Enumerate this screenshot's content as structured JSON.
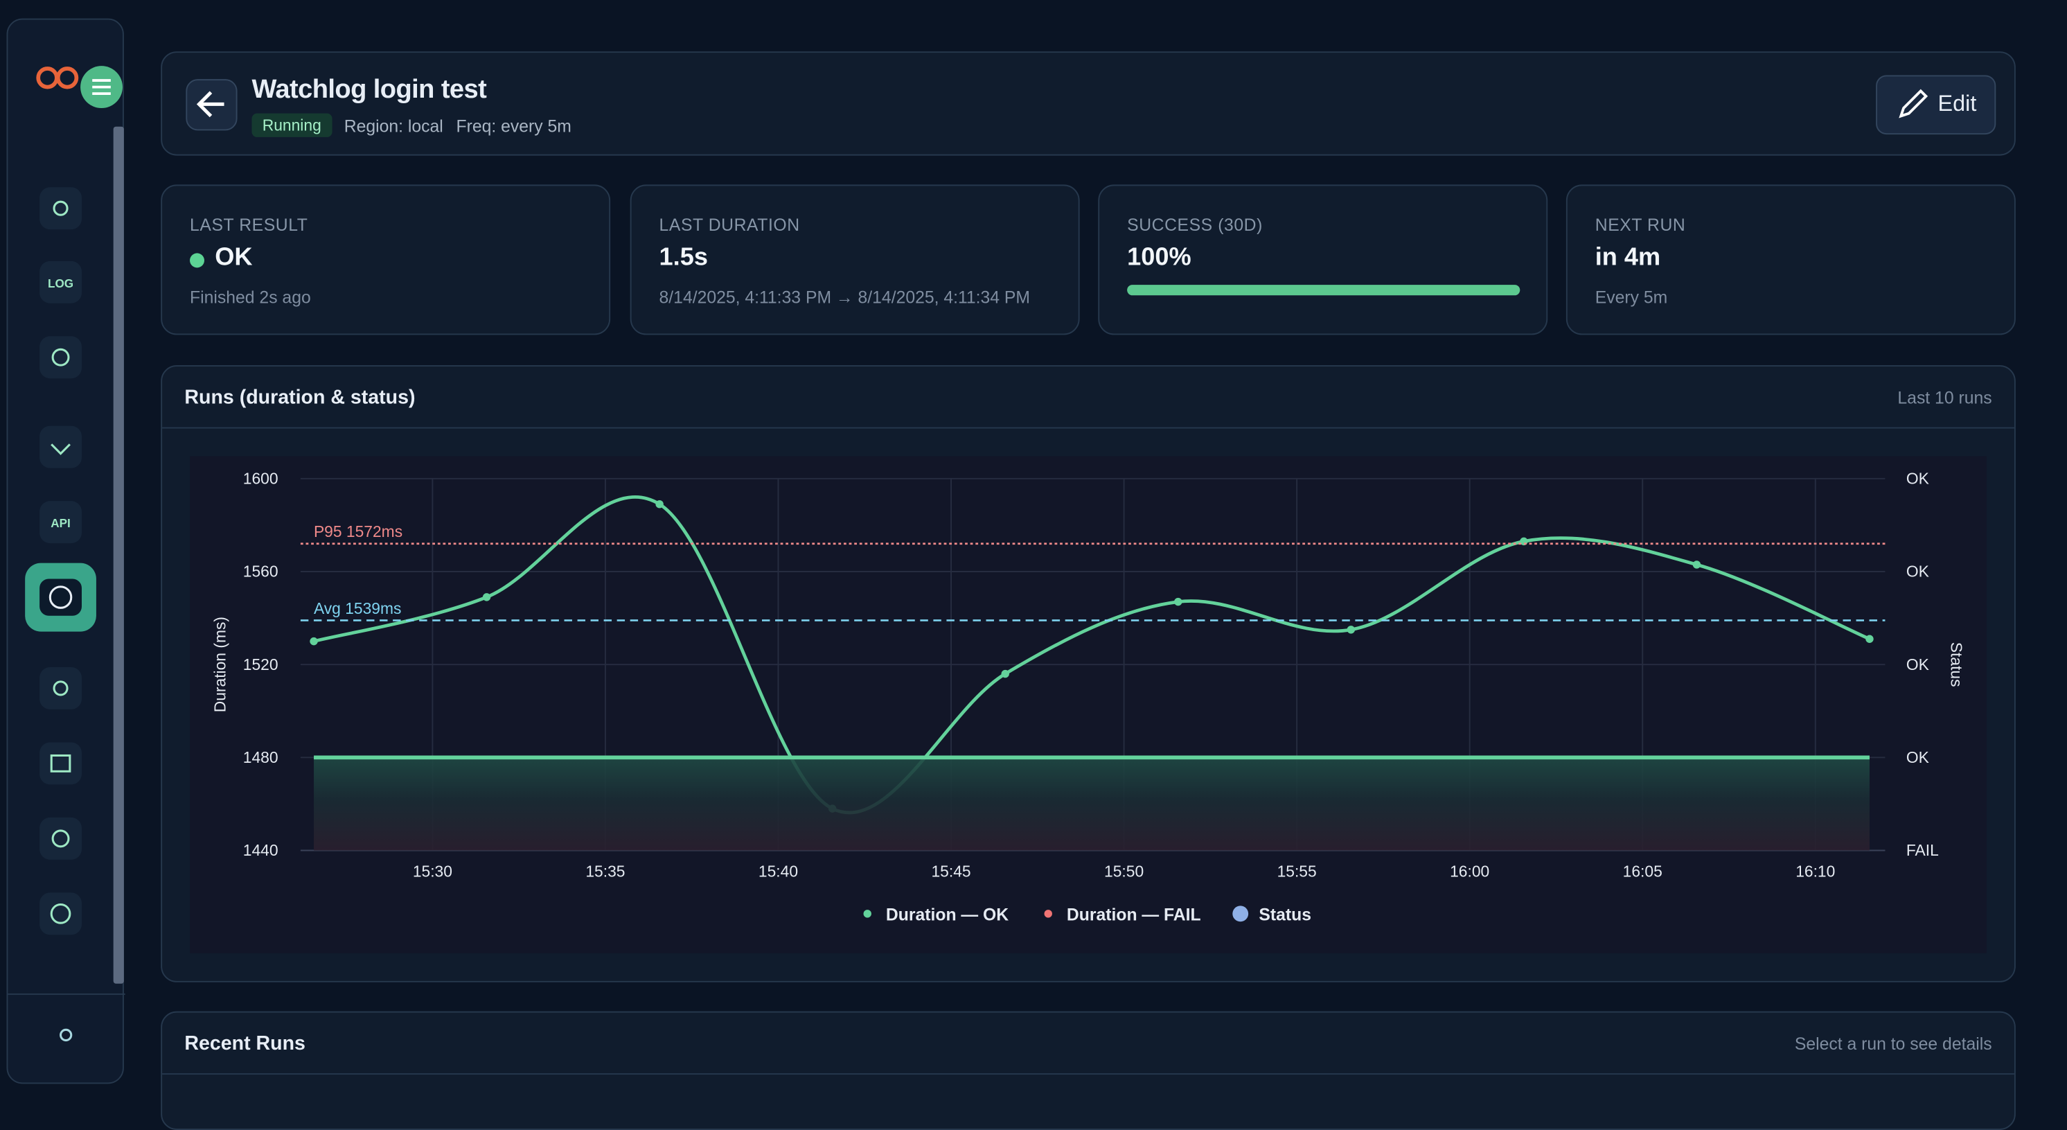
{
  "header": {
    "title": "Watchlog login test",
    "status": "Running",
    "region": "Region: local",
    "freq": "Freq: every 5m",
    "edit": "Edit"
  },
  "nav": {
    "log": "LOG",
    "api": "API"
  },
  "cards": [
    {
      "label": "LAST RESULT",
      "value": "OK",
      "sub": "Finished 2s ago"
    },
    {
      "label": "LAST DURATION",
      "value": "1.5s",
      "sub": "8/14/2025, 4:11:33 PM → 8/14/2025, 4:11:34 PM"
    },
    {
      "label": "SUCCESS (30D)",
      "value": 100,
      "value_label": "100%"
    },
    {
      "label": "NEXT RUN",
      "value": "in 4m",
      "sub": "Every 5m"
    }
  ],
  "chart_panel": {
    "title": "Runs (duration & status)",
    "note": "Last 10 runs"
  },
  "chart_data": {
    "type": "line",
    "ylabel": "Duration (ms)",
    "y2label": "Status",
    "x": [
      "15:26:34",
      "15:31:34",
      "15:36:34",
      "15:41:34",
      "15:46:34",
      "15:51:34",
      "15:56:34",
      "16:01:34",
      "16:06:34",
      "16:11:34"
    ],
    "xlim": [
      "15:26:11",
      "16:12:01"
    ],
    "xticks": [
      "15:30",
      "15:35",
      "15:40",
      "15:45",
      "15:50",
      "15:55",
      "16:00",
      "16:05",
      "16:10"
    ],
    "ylim": [
      1440,
      1600
    ],
    "yticks": [
      1440,
      1480,
      1520,
      1560,
      1600
    ],
    "y2lim": [
      0,
      4
    ],
    "y2ticks": [
      {
        "value": 0,
        "label": "FAIL"
      },
      {
        "value": 1,
        "label": "OK"
      },
      {
        "value": 2,
        "label": "OK"
      },
      {
        "value": 3,
        "label": "OK"
      },
      {
        "value": 4,
        "label": "OK"
      }
    ],
    "grid": true,
    "legend": "bottom",
    "series": [
      {
        "name": "Duration — OK",
        "color": "#63d29b",
        "values": [
          1530,
          1549,
          1589,
          1458,
          1516,
          1547,
          1535,
          1573,
          1563,
          1531
        ]
      },
      {
        "name": "Duration — FAIL",
        "color": "#f07474",
        "values": [
          null,
          null,
          null,
          null,
          null,
          null,
          null,
          null,
          null,
          null
        ]
      },
      {
        "name": "Status",
        "color": "#8fb0e6",
        "axis": "y2",
        "values": [
          1,
          1,
          1,
          1,
          1,
          1,
          1,
          1,
          1,
          1
        ]
      }
    ],
    "annotations": [
      {
        "label": "P95 1572ms",
        "value": 1572,
        "color": "#f08a8a"
      },
      {
        "label": "Avg 1539ms",
        "value": 1539,
        "color": "#7fd3f0"
      }
    ]
  },
  "recent": {
    "title": "Recent Runs",
    "note": "Select a run to see details"
  }
}
